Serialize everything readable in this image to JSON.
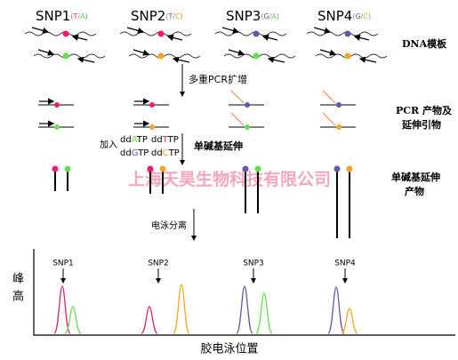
{
  "snps": [
    {
      "name": "SNP1",
      "alleles": [
        "(",
        "T",
        "/",
        "A",
        ")"
      ]
    },
    {
      "name": "SNP2",
      "alleles": [
        "(",
        "T",
        "/",
        "C",
        ")"
      ]
    },
    {
      "name": "SNP3",
      "alleles": [
        "(",
        "G",
        "/",
        "A",
        ")"
      ]
    },
    {
      "name": "SNP4",
      "alleles": [
        "(",
        "G",
        "/",
        "C",
        ")"
      ]
    }
  ],
  "labels": {
    "dna_template": "DNA模板",
    "pcr": "多重PCR扩增",
    "pcr_products": [
      "PCR 产物及",
      "延伸引物"
    ],
    "add": "加入",
    "extension": "单碱基延伸",
    "extension_products": [
      "单碱基延伸",
      "产物"
    ],
    "electrophoresis": "电泳分离",
    "watermark": "上海天昊生物科技有限公司",
    "y_axis": [
      "峰",
      "高"
    ],
    "x_axis": "胶电泳位置"
  },
  "ddntps": [
    [
      "dd",
      "A",
      "TP"
    ],
    [
      "dd",
      "T",
      "TP"
    ],
    [
      "dd",
      "G",
      "TP"
    ],
    [
      "dd",
      "C",
      "TP"
    ]
  ],
  "peak_labels": [
    "SNP1",
    "SNP2",
    "SNP3",
    "SNP4"
  ]
}
